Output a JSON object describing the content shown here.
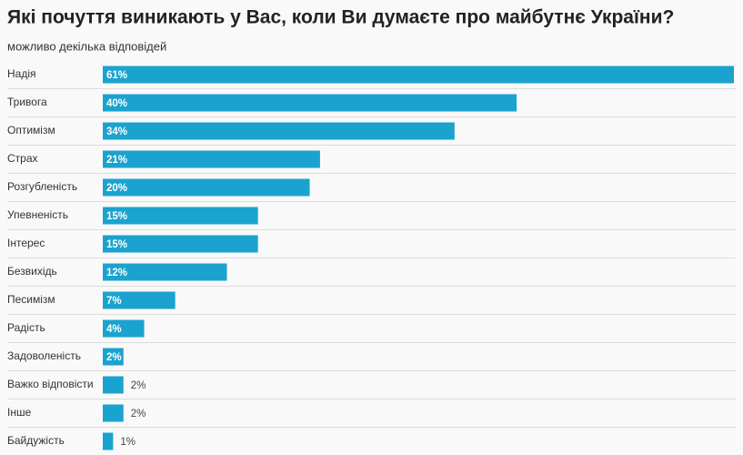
{
  "chart_data": {
    "type": "bar",
    "orientation": "horizontal",
    "title": "Які почуття виникають у Вас, коли Ви думаєте про майбутнє України?",
    "subtitle": "можливо декілька відповідей",
    "categories": [
      "Надія",
      "Тривога",
      "Оптимізм",
      "Страх",
      "Розгубленість",
      "Упевненість",
      "Інтерес",
      "Безвихідь",
      "Песимізм",
      "Радість",
      "Задоволеність",
      "Важко відповісти",
      "Інше",
      "Байдужість"
    ],
    "values": [
      61,
      40,
      34,
      21,
      20,
      15,
      15,
      12,
      7,
      4,
      2,
      2,
      2,
      1
    ],
    "value_labels": [
      "61%",
      "40%",
      "34%",
      "21%",
      "20%",
      "15%",
      "15%",
      "12%",
      "7%",
      "4%",
      "2%",
      "2%",
      "2%",
      "1%"
    ],
    "color": "#1ba3cf"
  }
}
